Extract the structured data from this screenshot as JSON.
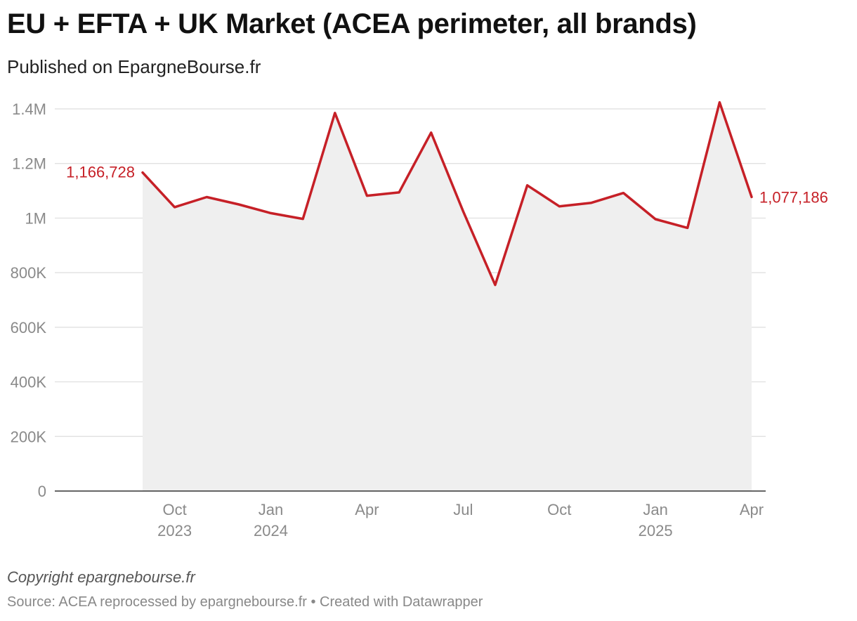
{
  "header": {
    "title": "EU + EFTA + UK Market (ACEA perimeter, all brands)",
    "subtitle": "Published on EpargneBourse.fr"
  },
  "footer": {
    "copyright": "Copyright epargnebourse.fr",
    "source": "Source: ACEA reprocessed by epargnebourse.fr • Created with Datawrapper"
  },
  "colors": {
    "line": "#c62027",
    "area": "#efefef",
    "grid": "#dddddd",
    "axis": "#333333"
  },
  "chart_data": {
    "type": "area",
    "x": [
      "2023-09",
      "2023-10",
      "2023-11",
      "2023-12",
      "2024-01",
      "2024-02",
      "2024-03",
      "2024-04",
      "2024-05",
      "2024-06",
      "2024-07",
      "2024-08",
      "2024-09",
      "2024-10",
      "2024-11",
      "2024-12",
      "2025-01",
      "2025-02",
      "2025-03",
      "2025-04"
    ],
    "series": [
      {
        "values": [
          1166728,
          1040000,
          1077000,
          1050000,
          1018000,
          997000,
          1385000,
          1082000,
          1094000,
          1313000,
          1025000,
          755000,
          1120000,
          1043000,
          1056000,
          1092000,
          996000,
          964000,
          1424000,
          1077186
        ]
      }
    ],
    "ylim": [
      0,
      1400000
    ],
    "y_ticks": [
      {
        "value": 1400000,
        "label": "1.4M"
      },
      {
        "value": 1200000,
        "label": "1.2M"
      },
      {
        "value": 1000000,
        "label": "1M"
      },
      {
        "value": 800000,
        "label": "800K"
      },
      {
        "value": 600000,
        "label": "600K"
      },
      {
        "value": 400000,
        "label": "400K"
      },
      {
        "value": 200000,
        "label": "200K"
      },
      {
        "value": 0,
        "label": "0"
      }
    ],
    "x_ticks": [
      {
        "x": "2023-10",
        "label": "Oct",
        "year": "2023"
      },
      {
        "x": "2024-01",
        "label": "Jan",
        "year": "2024"
      },
      {
        "x": "2024-04",
        "label": "Apr",
        "year": ""
      },
      {
        "x": "2024-07",
        "label": "Jul",
        "year": ""
      },
      {
        "x": "2024-10",
        "label": "Oct",
        "year": ""
      },
      {
        "x": "2025-01",
        "label": "Jan",
        "year": "2025"
      },
      {
        "x": "2025-04",
        "label": "Apr",
        "year": ""
      }
    ],
    "start_label": "1,166,728",
    "end_label": "1,077,186",
    "grid": true,
    "xlabel": "",
    "ylabel": ""
  }
}
